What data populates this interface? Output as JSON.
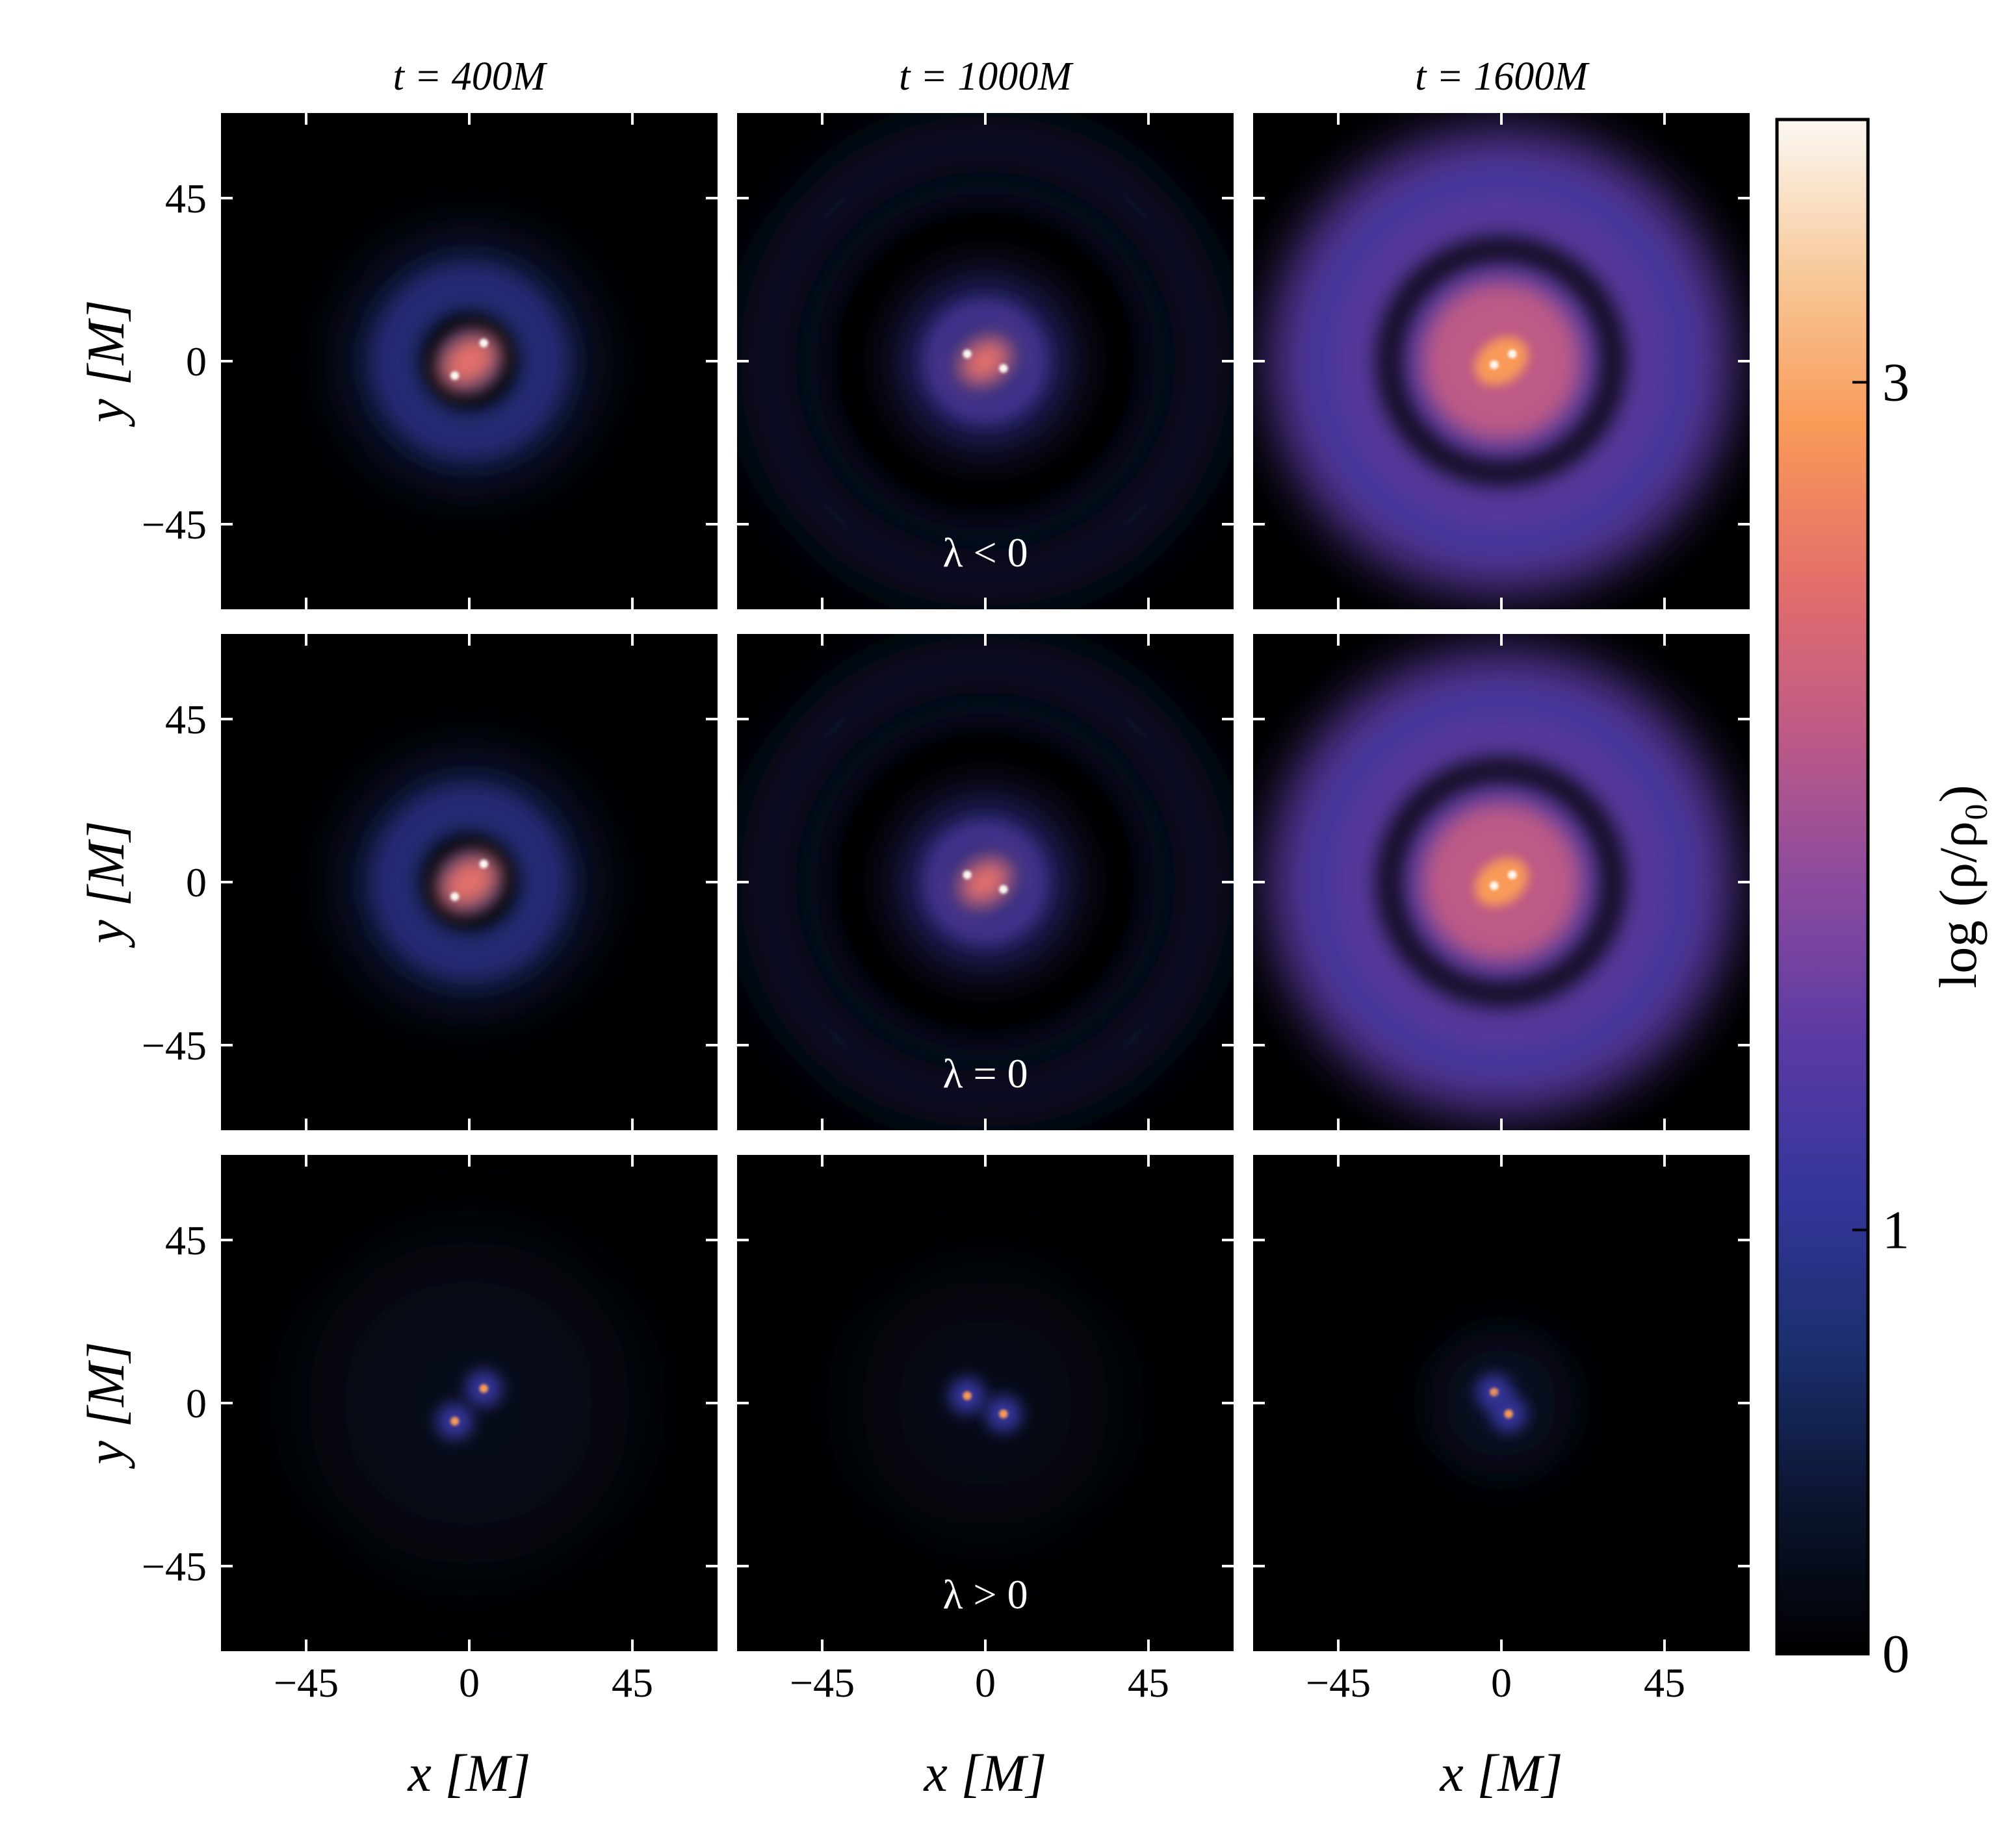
{
  "chart_data": {
    "type": "heatmap-grid",
    "column_titles": [
      "t = 400M",
      "t = 1000M",
      "t = 1600M"
    ],
    "row_labels": [
      "λ < 0",
      "λ = 0",
      "λ > 0"
    ],
    "xlabel": "x [M]",
    "ylabel": "y [M]",
    "xlim": [
      -68.5,
      68.5
    ],
    "ylim": [
      -68.5,
      68.5
    ],
    "xticks": [
      {
        "value": -45,
        "label": "−45"
      },
      0,
      45
    ],
    "yticks": [
      {
        "value": -45,
        "label": "−45"
      },
      0,
      45
    ],
    "colorbar": {
      "label": "log (ρ/ρ₀)",
      "lim": [
        0,
        3.62
      ],
      "ticks": [
        0,
        1,
        3
      ],
      "colormap": [
        "#000000",
        "#0b1530",
        "#1b2f6e",
        "#34369a",
        "#5a3aa3",
        "#8a4a9e",
        "#bd5a86",
        "#e46f6a",
        "#f99a58",
        "#f7c99a",
        "#fbf8f2"
      ]
    }
  }
}
